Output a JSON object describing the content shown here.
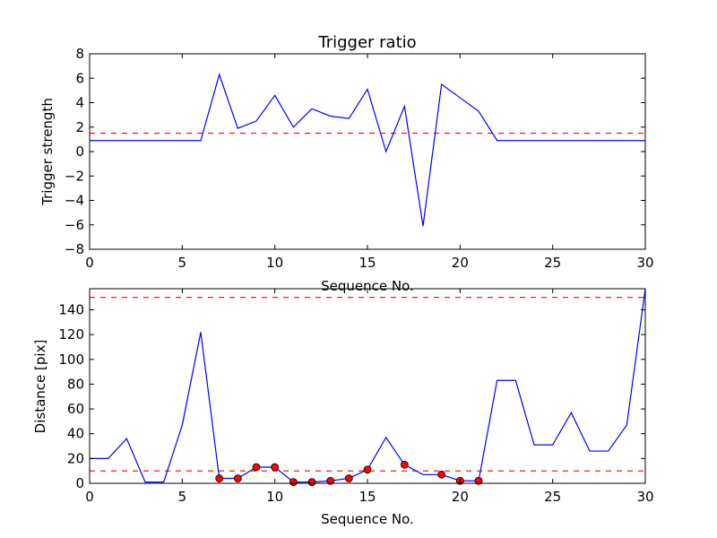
{
  "chart_data": [
    {
      "type": "line",
      "title": "Trigger ratio",
      "xlabel": "Sequence No.",
      "ylabel": "Trigger strength",
      "xlim": [
        0,
        30
      ],
      "ylim": [
        -8,
        8
      ],
      "xticks": [
        0,
        5,
        10,
        15,
        20,
        25,
        30
      ],
      "yticks": [
        -8,
        -6,
        -4,
        -2,
        0,
        2,
        4,
        6,
        8
      ],
      "grid": false,
      "series": [
        {
          "color": "#0000ff",
          "x": [
            0,
            1,
            2,
            3,
            4,
            5,
            6,
            7,
            8,
            9,
            10,
            11,
            12,
            13,
            14,
            15,
            16,
            17,
            18,
            19,
            20,
            21,
            22,
            23,
            24,
            25,
            26,
            27,
            28,
            29,
            30
          ],
          "values": [
            0.9,
            0.9,
            0.9,
            0.9,
            0.9,
            0.9,
            0.9,
            6.3,
            1.9,
            2.5,
            4.6,
            2.0,
            3.5,
            2.9,
            2.7,
            5.1,
            0.0,
            3.7,
            -6.1,
            5.5,
            4.4,
            3.3,
            0.9,
            0.9,
            0.9,
            0.9,
            0.9,
            0.9,
            0.9,
            0.9,
            0.9
          ]
        }
      ],
      "hlines": [
        {
          "y": 1.5,
          "color": "#ff0000",
          "style": "dashed"
        }
      ]
    },
    {
      "type": "line",
      "title": "",
      "xlabel": "Sequence No.",
      "ylabel": "Distance [pix]",
      "xlim": [
        0,
        30
      ],
      "ylim": [
        0,
        157
      ],
      "xticks": [
        0,
        5,
        10,
        15,
        20,
        25,
        30
      ],
      "yticks": [
        0,
        20,
        40,
        60,
        80,
        100,
        120,
        140
      ],
      "grid": false,
      "series": [
        {
          "color": "#0000ff",
          "x": [
            0,
            1,
            2,
            3,
            4,
            5,
            6,
            7,
            8,
            9,
            10,
            11,
            12,
            13,
            14,
            15,
            16,
            17,
            18,
            19,
            20,
            21,
            22,
            23,
            24,
            25,
            26,
            27,
            28,
            29,
            30
          ],
          "values": [
            20,
            20,
            36,
            1,
            1,
            47,
            122,
            4,
            4,
            13,
            13,
            1,
            1,
            2,
            4,
            11,
            37,
            15,
            7,
            7,
            2,
            2,
            83,
            83,
            31,
            31,
            57,
            26,
            26,
            47,
            157
          ]
        }
      ],
      "markers": {
        "color": "#ff0000",
        "x": [
          7,
          8,
          9,
          10,
          11,
          12,
          13,
          14,
          15,
          17,
          19,
          20,
          21
        ],
        "values": [
          4,
          4,
          13,
          13,
          1,
          1,
          2,
          4,
          11,
          15,
          7,
          2,
          2
        ]
      },
      "hlines": [
        {
          "y": 150,
          "color": "#ff0000",
          "style": "dashed"
        },
        {
          "y": 10,
          "color": "#ff0000",
          "style": "dashed"
        }
      ]
    }
  ]
}
